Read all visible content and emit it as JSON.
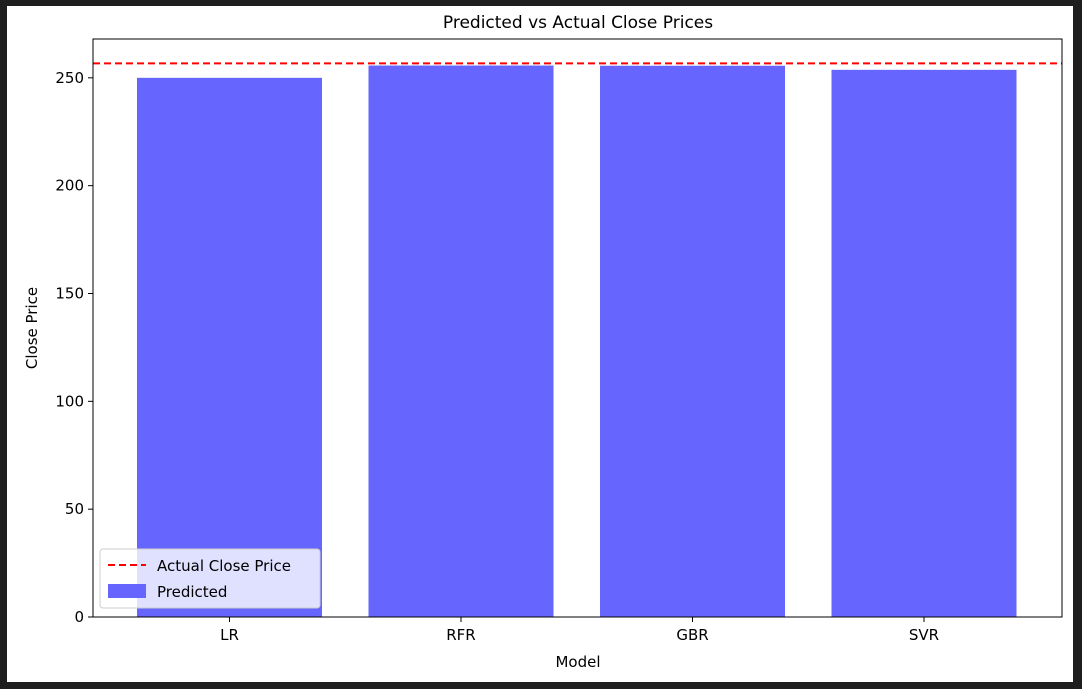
{
  "chart_data": {
    "type": "bar",
    "title": "Predicted vs Actual Close Prices",
    "xlabel": "Model",
    "ylabel": "Close Price",
    "categories": [
      "LR",
      "RFR",
      "GBR",
      "SVR"
    ],
    "series": [
      {
        "name": "Predicted",
        "values": [
          250.0,
          255.7,
          255.6,
          253.7
        ],
        "color": "#6666ff"
      }
    ],
    "reference_line": {
      "name": "Actual Close Price",
      "value": 256.7,
      "color": "#ff0000",
      "style": "dashed"
    },
    "yticks": [
      "0",
      "50",
      "100",
      "150",
      "200",
      "250"
    ],
    "ylim": [
      0,
      268
    ],
    "grid": false,
    "legend_position": "lower-left"
  }
}
